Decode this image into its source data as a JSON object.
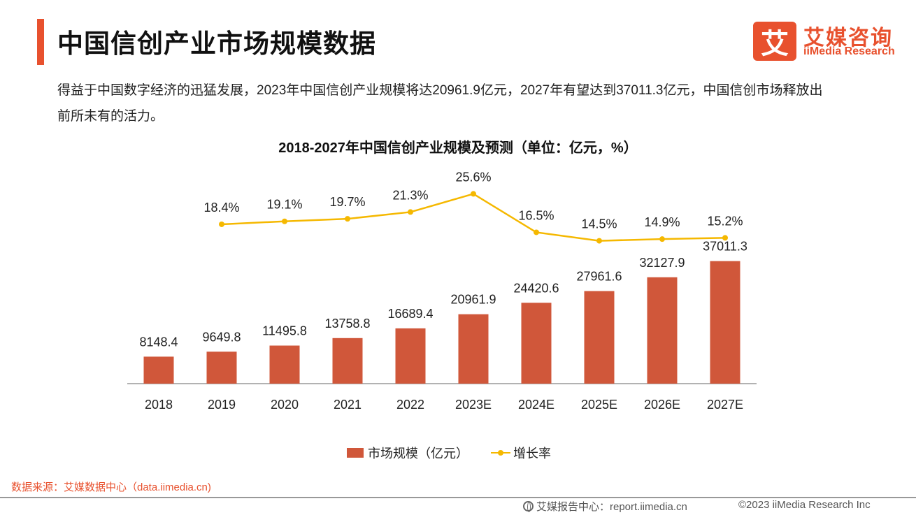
{
  "header": {
    "title": "中国信创产业市场规模数据",
    "logo_mark": "艾",
    "logo_cn": "艾媒咨询",
    "logo_en": "iiMedia Research"
  },
  "intro": "得益于中国数字经济的迅猛发展，2023年中国信创产业规模将达20961.9亿元，2027年有望达到37011.3亿元，中国信创市场释放出前所未有的活力。",
  "chart_data": {
    "type": "bar",
    "title": "2018-2027年中国信创产业规模及预测（单位：亿元，%）",
    "categories": [
      "2018",
      "2019",
      "2020",
      "2021",
      "2022",
      "2023E",
      "2024E",
      "2025E",
      "2026E",
      "2027E"
    ],
    "series": [
      {
        "name": "市场规模（亿元）",
        "type": "bar",
        "color": "#d0573a",
        "values": [
          8148.4,
          9649.8,
          11495.8,
          13758.8,
          16689.4,
          20961.9,
          24420.6,
          27961.6,
          32127.9,
          37011.3
        ],
        "labels": [
          "8148.4",
          "9649.8",
          "11495.8",
          "13758.8",
          "16689.4",
          "20961.9",
          "24420.6",
          "27961.6",
          "32127.9",
          "37011.3"
        ]
      },
      {
        "name": "增长率",
        "type": "line",
        "color": "#f5b800",
        "values": [
          null,
          18.4,
          19.1,
          19.7,
          21.3,
          25.6,
          16.5,
          14.5,
          14.9,
          15.2
        ],
        "labels": [
          "",
          "18.4%",
          "19.1%",
          "19.7%",
          "21.3%",
          "25.6%",
          "16.5%",
          "14.5%",
          "14.9%",
          "15.2%"
        ]
      }
    ],
    "legend": {
      "position": "bottom"
    },
    "grid": false
  },
  "source": "数据来源：艾媒数据中心（data.iimedia.cn)",
  "footer": {
    "site": "艾媒报告中心：report.iimedia.cn",
    "copyright": "©2023  iiMedia Research  Inc"
  }
}
